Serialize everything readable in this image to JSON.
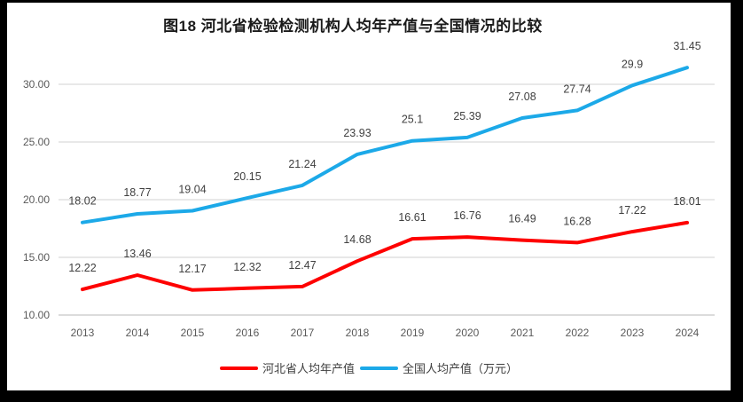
{
  "frame": {
    "border_color": "#000000",
    "background_color": "#ffffff"
  },
  "chart_data": {
    "type": "line",
    "title": "图18  河北省检验检测机构人均年产值与全国情况的比较",
    "categories": [
      "2013",
      "2014",
      "2015",
      "2016",
      "2017",
      "2018",
      "2019",
      "2020",
      "2021",
      "2022",
      "2023",
      "2024"
    ],
    "series": [
      {
        "id": "hebei",
        "name": "河北省人均年产值",
        "color": "#FE0000",
        "values": [
          12.22,
          13.46,
          12.17,
          12.32,
          12.47,
          14.68,
          16.61,
          16.76,
          16.49,
          16.28,
          17.22,
          18.01
        ],
        "labels": [
          "12.22",
          "13.46",
          "12.17",
          "12.32",
          "12.47",
          "14.68",
          "16.61",
          "16.76",
          "16.49",
          "16.28",
          "17.22",
          "18.01"
        ]
      },
      {
        "id": "national",
        "name": "全国人均产值（万元）",
        "color": "#1CA9E8",
        "values": [
          18.02,
          18.77,
          19.04,
          20.15,
          21.24,
          23.93,
          25.1,
          25.39,
          27.08,
          27.74,
          29.9,
          31.45
        ],
        "labels": [
          "18.02",
          "18.77",
          "19.04",
          "20.15",
          "21.24",
          "23.93",
          "25.1",
          "25.39",
          "27.08",
          "27.74",
          "29.9",
          "31.45"
        ]
      }
    ],
    "xlabel": "",
    "ylabel": "",
    "y_axis": {
      "ticks": [
        "10.00",
        "15.00",
        "20.00",
        "25.00",
        "30.00"
      ],
      "tick_values": [
        10,
        15,
        20,
        25,
        30
      ],
      "min": 10,
      "max": 32.5,
      "grid": true
    },
    "legend_position": "bottom",
    "grid_color": "#D9D9D9"
  }
}
